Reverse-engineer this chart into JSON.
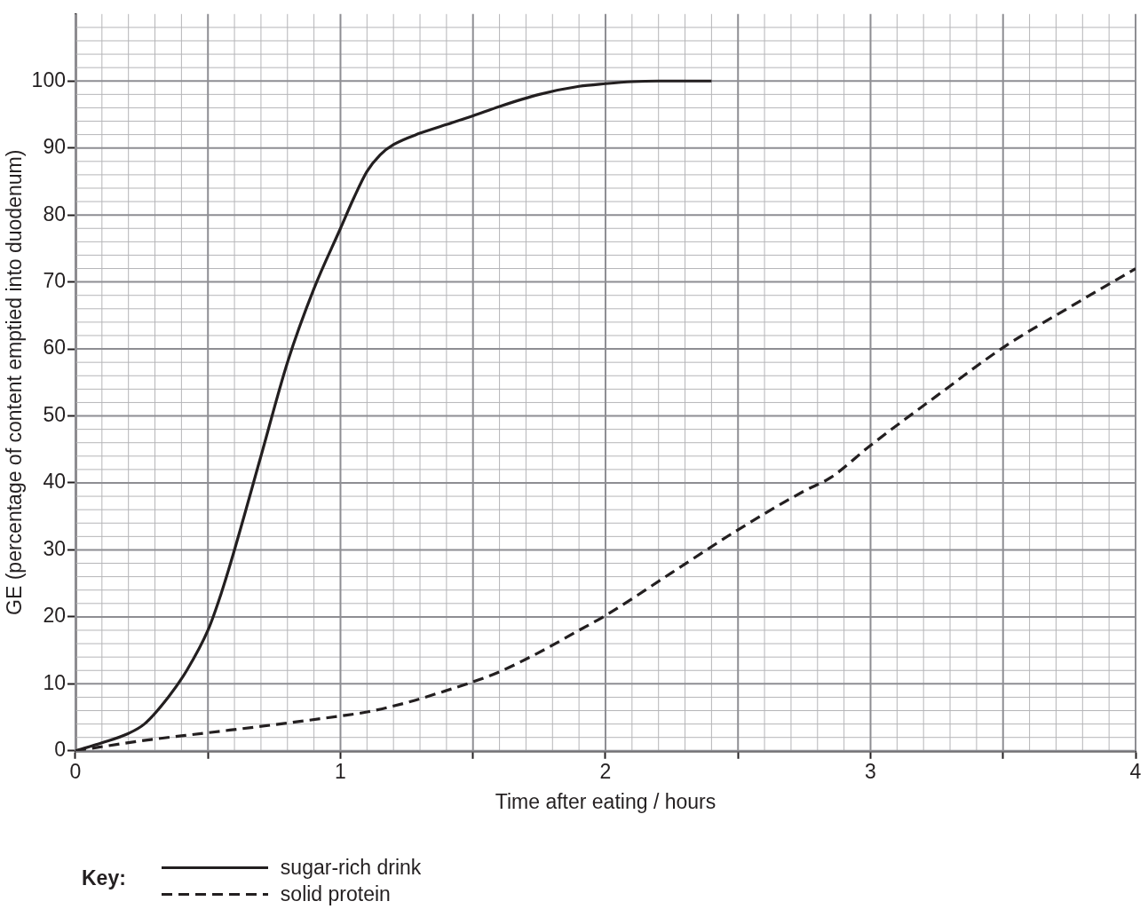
{
  "chart_data": {
    "type": "line",
    "xlabel": "Time after eating / hours",
    "ylabel": "GE (percentage of content emptied into duodenum)",
    "xlim": [
      0,
      4
    ],
    "ylim": [
      0,
      110
    ],
    "xticks": [
      0,
      {
        "value": 0.5,
        "label": null
      },
      1,
      {
        "value": 1.5,
        "label": null
      },
      2,
      {
        "value": 2.5,
        "label": null
      },
      3,
      {
        "value": 3.5,
        "label": null
      },
      4
    ],
    "yticks": [
      0,
      10,
      20,
      30,
      40,
      50,
      60,
      70,
      80,
      90,
      100
    ],
    "grid": true,
    "legend": "bottom left",
    "legend_title": "Key:",
    "marker": "none",
    "series": [
      {
        "name": "sugar-rich drink",
        "color": "#231f20",
        "line_style": "solid",
        "x": [
          0,
          0.1,
          0.2,
          0.26,
          0.35,
          0.42,
          0.5,
          0.55,
          0.6,
          0.7,
          0.8,
          0.9,
          1.0,
          1.05,
          1.1,
          1.15,
          1.2,
          1.3,
          1.4,
          1.5,
          1.6,
          1.75,
          1.9,
          2.0,
          2.1,
          2.2,
          2.4
        ],
        "values": [
          0,
          1.2,
          2.6,
          4,
          8,
          12,
          18,
          23.5,
          30,
          44,
          58,
          69,
          78,
          82.5,
          86.5,
          89,
          90.5,
          92.2,
          93.5,
          94.8,
          96.2,
          98,
          99.2,
          99.6,
          99.9,
          100,
          100
        ]
      },
      {
        "name": "solid protein",
        "color": "#231f20",
        "line_style": "dashed",
        "x": [
          0,
          0.25,
          0.5,
          0.75,
          1.0,
          1.1,
          1.25,
          1.4,
          1.5,
          1.6,
          1.75,
          1.9,
          2.0,
          2.25,
          2.5,
          2.75,
          2.85,
          3.0,
          3.25,
          3.5,
          3.75,
          4.0
        ],
        "values": [
          0,
          1.5,
          2.7,
          3.9,
          5.2,
          5.8,
          7.2,
          9,
          10.3,
          11.8,
          14.7,
          18,
          20.2,
          26.6,
          33,
          38.8,
          40.8,
          45.6,
          53,
          60.2,
          66.2,
          72
        ]
      }
    ]
  }
}
